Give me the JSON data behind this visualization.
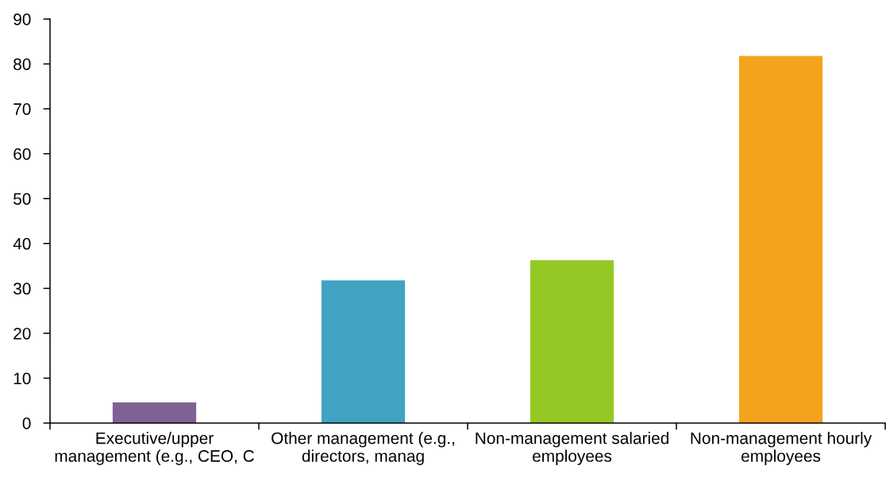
{
  "chart_data": {
    "type": "bar",
    "categories": [
      "Executive/upper management (e.g., CEO, C",
      "Other management (e.g., directors, manag",
      "Non-management salaried employees",
      "Non-management hourly employees"
    ],
    "values": [
      4.6,
      31.8,
      36.3,
      81.8
    ],
    "colors": [
      "#7f6195",
      "#41a3c2",
      "#96c825",
      "#f4a41c"
    ],
    "ylim": [
      0,
      90
    ],
    "yticks": [
      0,
      10,
      20,
      30,
      40,
      50,
      60,
      70,
      80,
      90
    ]
  }
}
